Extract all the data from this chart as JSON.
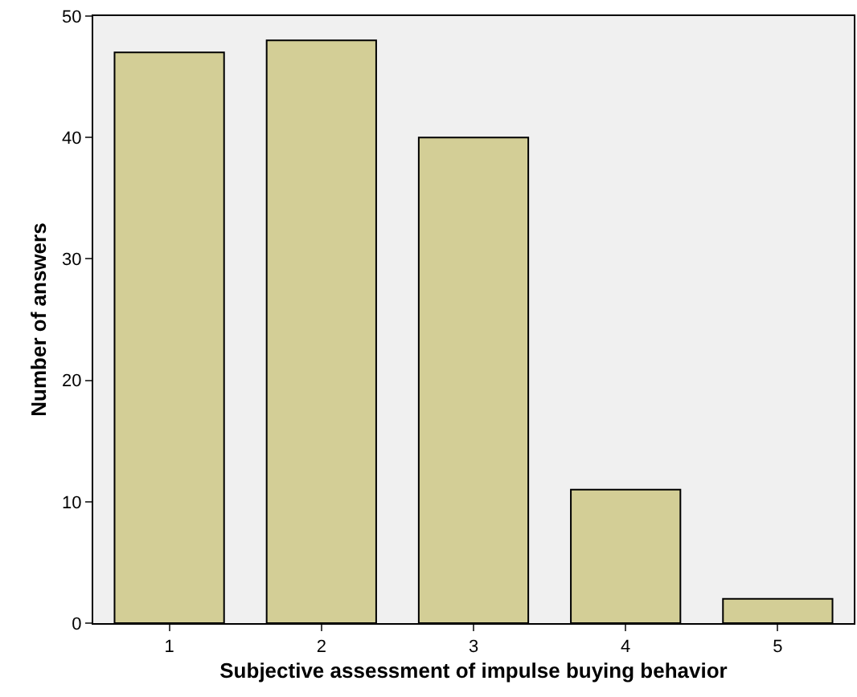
{
  "chart_data": {
    "type": "bar",
    "xlabel": "Subjective assessment of impulse buying behavior",
    "ylabel": "Number of answers",
    "categories": [
      "1",
      "2",
      "3",
      "4",
      "5"
    ],
    "values": [
      47,
      48,
      40,
      11,
      2
    ],
    "color": "#d3ce96",
    "ylim": [
      0,
      50
    ],
    "yticks": [
      0,
      10,
      20,
      30,
      40,
      50
    ],
    "grid": false,
    "legend": false
  }
}
